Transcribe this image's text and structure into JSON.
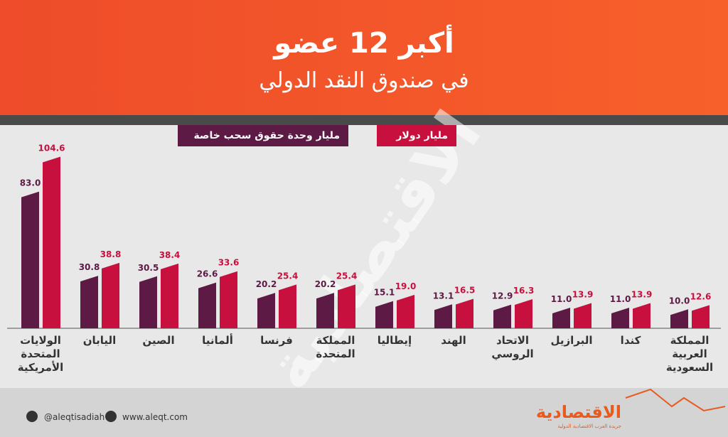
{
  "chart_data": {
    "type": "bar",
    "title": "أكبر 12 عضو",
    "subtitle": "في صندوق النقد الدولي",
    "categories": [
      "الولايات المتحدة الأمريكية",
      "اليابان",
      "الصين",
      "ألمانيا",
      "فرنسا",
      "المملكة المتحدة",
      "إيطاليا",
      "الهند",
      "الاتحاد الروسي",
      "البرازيل",
      "كندا",
      "المملكة العربية السعودية"
    ],
    "series": [
      {
        "name": "مليار وحدة حقوق سحب خاصة",
        "color": "#5c1a45",
        "values": [
          83.0,
          30.8,
          30.5,
          26.6,
          20.2,
          20.2,
          15.1,
          13.1,
          12.9,
          11.0,
          11.0,
          10.0
        ],
        "value_labels": [
          "83.0",
          "30.8",
          "30.5",
          "26.6",
          "20.2",
          "20.2",
          "15.1",
          "13.1",
          "12.9",
          "11.0",
          "11.0",
          "10.0"
        ]
      },
      {
        "name": "مليار دولار",
        "color": "#c8103e",
        "values": [
          104.6,
          38.8,
          38.4,
          33.6,
          25.4,
          25.4,
          19.0,
          16.5,
          16.3,
          13.9,
          13.9,
          12.6
        ],
        "value_labels": [
          "104.6",
          "38.8",
          "38.4",
          "33.6",
          "25.4",
          "25.4",
          "19.0",
          "16.5",
          "16.3",
          "13.9",
          "13.9",
          "12.6"
        ]
      }
    ]
  },
  "watermark": "الاقتصادية",
  "footer": {
    "twitter": "@aleqtisadiah",
    "website": "www.aleqt.com",
    "logo": "الاقتصادية",
    "logo_subtitle": "جريدة العرب الاقتصادية الدولية"
  }
}
